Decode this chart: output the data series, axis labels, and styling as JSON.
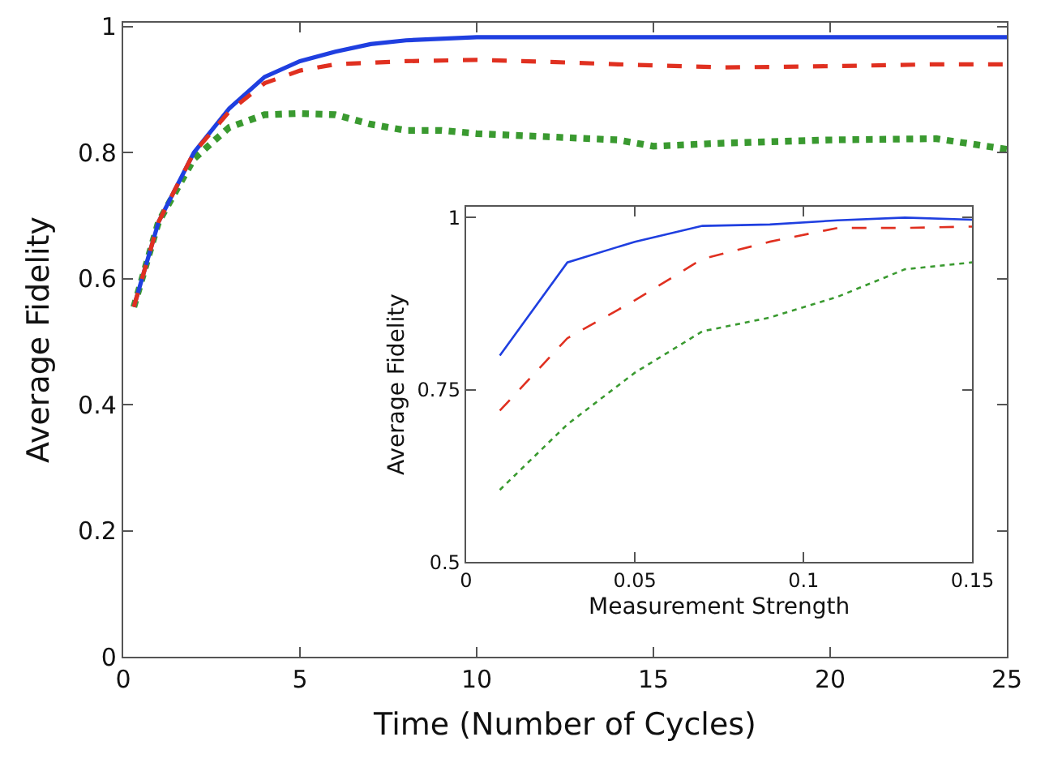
{
  "chart_data": [
    {
      "type": "line",
      "xlabel": "Time (Number of Cycles)",
      "ylabel": "Average Fidelity",
      "xlim": [
        0,
        25
      ],
      "ylim": [
        0,
        1.006
      ],
      "xticks": [
        0,
        5,
        10,
        15,
        20,
        25
      ],
      "yticks": [
        0,
        0.2,
        0.4,
        0.6,
        0.8,
        1
      ],
      "series": [
        {
          "color": "#1f3fe0",
          "line_style": "solid",
          "x": [
            0.3,
            1,
            2,
            3,
            4,
            5,
            6,
            7,
            8,
            10,
            12,
            15,
            20,
            25
          ],
          "values": [
            0.555,
            0.69,
            0.8,
            0.87,
            0.92,
            0.945,
            0.96,
            0.972,
            0.978,
            0.983,
            0.983,
            0.983,
            0.983,
            0.983
          ]
        },
        {
          "color": "#e03020",
          "line_style": "dashed",
          "x": [
            0.3,
            1,
            2,
            3,
            4,
            5,
            6,
            8,
            10,
            12,
            14,
            17,
            20,
            23,
            25
          ],
          "values": [
            0.555,
            0.69,
            0.8,
            0.865,
            0.91,
            0.93,
            0.94,
            0.945,
            0.947,
            0.944,
            0.94,
            0.935,
            0.937,
            0.94,
            0.94
          ]
        },
        {
          "color": "#3a9a30",
          "line_style": "dotted",
          "x": [
            0.3,
            1,
            2,
            3,
            4,
            5,
            6,
            7,
            8,
            9,
            10,
            12,
            14,
            15,
            17,
            20,
            23,
            25
          ],
          "values": [
            0.555,
            0.69,
            0.79,
            0.84,
            0.86,
            0.862,
            0.86,
            0.845,
            0.835,
            0.835,
            0.83,
            0.825,
            0.82,
            0.81,
            0.815,
            0.82,
            0.822,
            0.805
          ]
        }
      ]
    },
    {
      "type": "line",
      "xlabel": "Measurement Strength",
      "ylabel": "Average Fidelity",
      "xlim": [
        0,
        0.15
      ],
      "ylim": [
        0.5,
        1.016
      ],
      "xticks": [
        0,
        0.05,
        0.1,
        0.15
      ],
      "yticks": [
        0.5,
        0.75,
        1
      ],
      "x": [
        0.01,
        0.03,
        0.05,
        0.07,
        0.09,
        0.11,
        0.13,
        0.15
      ],
      "series": [
        {
          "color": "#1f3fe0",
          "line_style": "solid",
          "values": [
            0.8,
            0.935,
            0.965,
            0.988,
            0.99,
            0.996,
            1.0,
            0.997
          ]
        },
        {
          "color": "#e03020",
          "line_style": "dashed",
          "values": [
            0.72,
            0.825,
            0.88,
            0.94,
            0.965,
            0.985,
            0.985,
            0.987
          ]
        },
        {
          "color": "#3a9a30",
          "line_style": "dotted",
          "values": [
            0.605,
            0.7,
            0.775,
            0.835,
            0.855,
            0.885,
            0.925,
            0.935
          ]
        }
      ]
    }
  ]
}
